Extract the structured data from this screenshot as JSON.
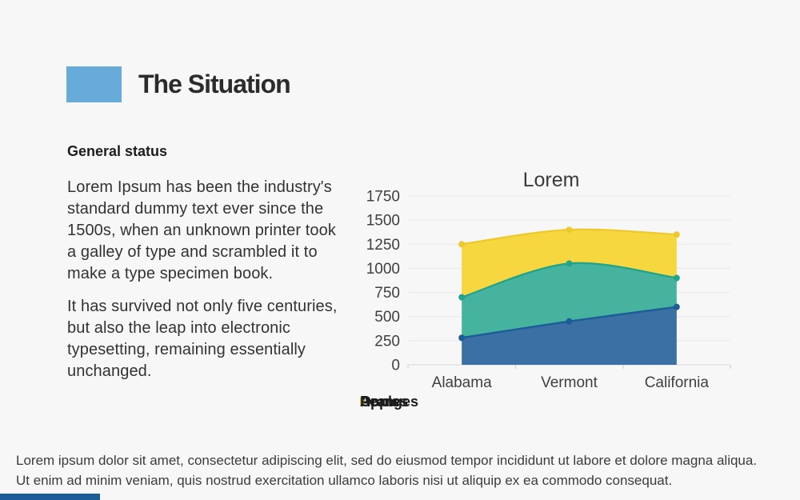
{
  "slide": {
    "title": "The Situation",
    "section_heading": "General status",
    "paragraphs": [
      "Lorem Ipsum has been the industry's standard dummy text ever since the 1500s, when an unknown printer took a galley of type and scrambled it to make a type specimen book.",
      "It has survived not only five centuries, but also the leap into electronic typesetting, remaining essentially unchanged."
    ],
    "footer": "Lorem ipsum dolor sit amet, consectetur adipiscing elit, sed do eiusmod tempor incididunt ut labore et dolore magna aliqua. Ut enim ad minim veniam, quis nostrud exercitation ullamco laboris nisi ut aliquip ex ea commodo consequat.",
    "accent_color": "#67abdb",
    "footer_bar_color": "#1b5e97",
    "background_color": "#f7f7f8"
  },
  "chart_data": {
    "type": "area",
    "stacked": true,
    "title": "Lorem",
    "categories": [
      "Alabama",
      "Vermont",
      "California"
    ],
    "series": [
      {
        "name": "Apples",
        "values": [
          280,
          450,
          600
        ],
        "fill": "#3b70a5",
        "line": "#1d5c96"
      },
      {
        "name": "Oranges",
        "values": [
          420,
          600,
          300
        ],
        "fill": "#45b39e",
        "line": "#21a38c"
      },
      {
        "name": "Pears",
        "values": [
          550,
          350,
          450
        ],
        "fill": "#f7d73f",
        "line": "#eec92e"
      }
    ],
    "totals": [
      1250,
      1400,
      1350
    ],
    "ylim": [
      0,
      1750
    ],
    "yticks": [
      0,
      250,
      500,
      750,
      1000,
      1250,
      1500,
      1750
    ],
    "grid": true,
    "smooth_lines": true,
    "point_markers": true,
    "legend_position": "bottom",
    "xlabel": "",
    "ylabel": ""
  }
}
